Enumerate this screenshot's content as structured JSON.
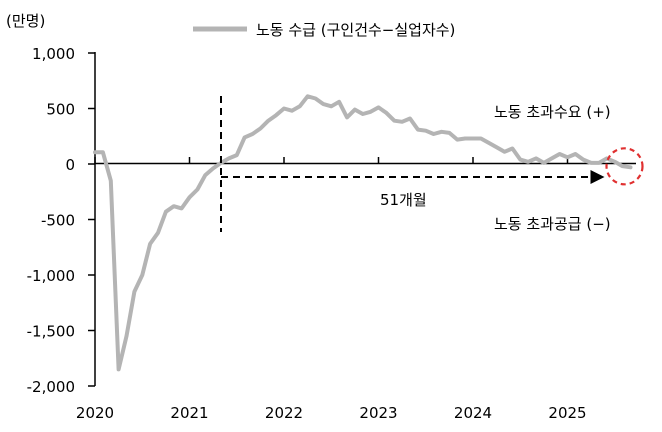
{
  "chart_data": {
    "type": "line",
    "unit_label": "(만명)",
    "legend_label": "노동 수급 (구인건수−실업자수)",
    "x_tick_labels": [
      "2020",
      "2021",
      "2022",
      "2023",
      "2024",
      "2025"
    ],
    "y_tick_labels": [
      "1,000",
      "500",
      "0",
      "-500",
      "-1,000",
      "-1,500",
      "-2,000"
    ],
    "y_ticks": [
      1000,
      500,
      0,
      -500,
      -1000,
      -1500,
      -2000
    ],
    "ylim": [
      -2000,
      1000
    ],
    "x_range": [
      "2020-01",
      "2025-09"
    ],
    "grid": false,
    "colors": {
      "series": "#b4b4b4",
      "axis": "#000000",
      "highlight": "#e03030"
    },
    "annotations": {
      "excess_demand": "노동 초과수요 (+)",
      "excess_supply": "노동 초과공급 (−)",
      "duration": "51개월",
      "marker_date": "2021-05"
    },
    "series": [
      {
        "name": "노동 수급 (구인건수−실업자수)",
        "points": [
          [
            "2020-01",
            105
          ],
          [
            "2020-02",
            105
          ],
          [
            "2020-03",
            -150
          ],
          [
            "2020-04",
            -1850
          ],
          [
            "2020-05",
            -1550
          ],
          [
            "2020-06",
            -1150
          ],
          [
            "2020-07",
            -1000
          ],
          [
            "2020-08",
            -720
          ],
          [
            "2020-09",
            -620
          ],
          [
            "2020-10",
            -430
          ],
          [
            "2020-11",
            -380
          ],
          [
            "2020-12",
            -400
          ],
          [
            "2021-01",
            -300
          ],
          [
            "2021-02",
            -230
          ],
          [
            "2021-03",
            -100
          ],
          [
            "2021-04",
            -40
          ],
          [
            "2021-05",
            10
          ],
          [
            "2021-06",
            50
          ],
          [
            "2021-07",
            80
          ],
          [
            "2021-08",
            240
          ],
          [
            "2021-09",
            270
          ],
          [
            "2021-10",
            320
          ],
          [
            "2021-11",
            390
          ],
          [
            "2021-12",
            440
          ],
          [
            "2022-01",
            500
          ],
          [
            "2022-02",
            480
          ],
          [
            "2022-03",
            520
          ],
          [
            "2022-04",
            610
          ],
          [
            "2022-05",
            590
          ],
          [
            "2022-06",
            540
          ],
          [
            "2022-07",
            520
          ],
          [
            "2022-08",
            560
          ],
          [
            "2022-09",
            420
          ],
          [
            "2022-10",
            490
          ],
          [
            "2022-11",
            450
          ],
          [
            "2022-12",
            470
          ],
          [
            "2023-01",
            510
          ],
          [
            "2023-02",
            460
          ],
          [
            "2023-03",
            390
          ],
          [
            "2023-04",
            380
          ],
          [
            "2023-05",
            410
          ],
          [
            "2023-06",
            310
          ],
          [
            "2023-07",
            300
          ],
          [
            "2023-08",
            270
          ],
          [
            "2023-09",
            290
          ],
          [
            "2023-10",
            280
          ],
          [
            "2023-11",
            220
          ],
          [
            "2023-12",
            230
          ],
          [
            "2024-01",
            230
          ],
          [
            "2024-02",
            230
          ],
          [
            "2024-03",
            190
          ],
          [
            "2024-04",
            150
          ],
          [
            "2024-05",
            110
          ],
          [
            "2024-06",
            140
          ],
          [
            "2024-07",
            40
          ],
          [
            "2024-08",
            20
          ],
          [
            "2024-09",
            50
          ],
          [
            "2024-10",
            10
          ],
          [
            "2024-11",
            50
          ],
          [
            "2024-12",
            90
          ],
          [
            "2025-01",
            60
          ],
          [
            "2025-02",
            90
          ],
          [
            "2025-03",
            40
          ],
          [
            "2025-04",
            10
          ],
          [
            "2025-05",
            10
          ],
          [
            "2025-06",
            50
          ],
          [
            "2025-07",
            20
          ],
          [
            "2025-08",
            -20
          ],
          [
            "2025-09",
            -30
          ]
        ]
      }
    ]
  }
}
